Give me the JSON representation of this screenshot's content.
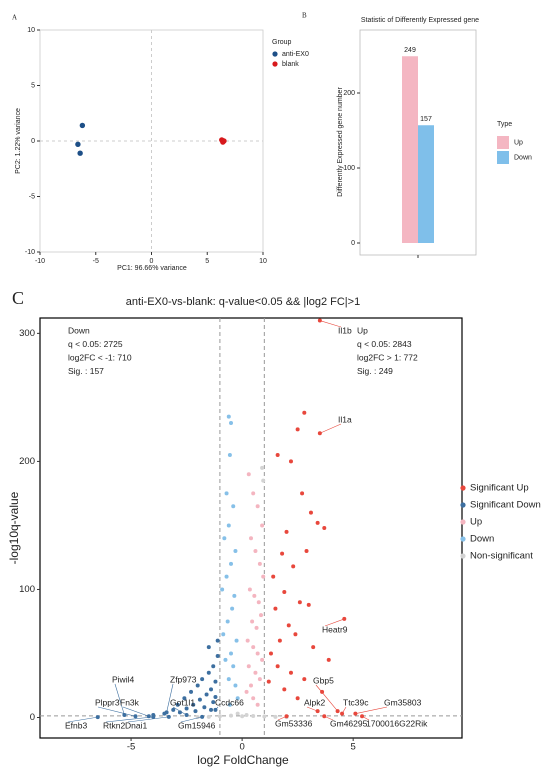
{
  "chart_data": [
    {
      "type": "scatter",
      "panel": "A",
      "x_label": "PC1: 96.66% variance",
      "y_label": "PC2: 1.22% variance",
      "xlim": [
        -10,
        10
      ],
      "xticks": [
        -10,
        -5,
        0,
        5,
        10
      ],
      "ylim": [
        -10,
        10
      ],
      "yticks": [
        -10,
        -5,
        0,
        5,
        10
      ],
      "zero_lines": true,
      "legend_title": "Group",
      "legend": "right",
      "series": [
        {
          "name": "anti-EX0",
          "color": "#1d4f87",
          "x": [
            -6.2,
            -6.6,
            -6.4
          ],
          "y": [
            1.4,
            -0.3,
            -1.1
          ]
        },
        {
          "name": "blank",
          "color": "#d7191c",
          "x": [
            6.3,
            6.4,
            6.5
          ],
          "y": [
            0.1,
            -0.1,
            0.0
          ]
        }
      ]
    },
    {
      "type": "bar",
      "panel": "B",
      "title": "Statistic of Differently Expressed gene",
      "y_label": "Differently Expressed gene number",
      "categories": [
        null
      ],
      "ylim": [
        -16,
        284
      ],
      "yticks": [
        0,
        100,
        200
      ],
      "legend_title": "Type",
      "legend": "right",
      "series": [
        {
          "name": "Up",
          "color": "#f4b6c2",
          "values": [
            249
          ]
        },
        {
          "name": "Down",
          "color": "#7fbfea",
          "values": [
            157
          ]
        }
      ]
    },
    {
      "type": "scatter",
      "panel": "C",
      "title": "anti-EX0-vs-blank: q-value<0.05 && |log2 FC|>1",
      "x_label": "log2 FoldChange",
      "y_label": "-log10q-value",
      "xlim": [
        -9.1,
        9.9
      ],
      "xticks": [
        -5,
        0,
        5
      ],
      "ylim": [
        -16,
        312
      ],
      "yticks": [
        0,
        100,
        200,
        300
      ],
      "vlines": [
        -1,
        1
      ],
      "hline": 1.3,
      "legend": "right",
      "annotations": [
        [
          "Down",
          "q < 0.05: 2725",
          "log2FC < -1: 710",
          "Sig. : 157"
        ],
        [
          "Up",
          "q < 0.05: 2843",
          "log2FC > 1: 772",
          "Sig. : 249"
        ]
      ],
      "series": [
        {
          "name": "Significant Up",
          "color": "#e8473c",
          "x": [
            2.8,
            2.5,
            2.2,
            1.6,
            2.7,
            3.1,
            3.4,
            3.7,
            2.0,
            2.9,
            1.8,
            2.3,
            1.4,
            1.9,
            2.6,
            3.0,
            1.5,
            2.1,
            2.4,
            1.7,
            3.2,
            3.9,
            1.3,
            1.6,
            2.2,
            2.8,
            1.2,
            1.9,
            3.6,
            2.5
          ],
          "y": [
            238,
            225,
            200,
            205,
            175,
            160,
            152,
            148,
            145,
            130,
            128,
            118,
            110,
            98,
            90,
            88,
            85,
            72,
            65,
            60,
            55,
            45,
            50,
            40,
            35,
            30,
            28,
            22,
            20,
            15
          ]
        },
        {
          "name": "Significant Down",
          "color": "#3d6fa0",
          "x": [
            -1.1,
            -1.3,
            -1.5,
            -1.8,
            -2.0,
            -2.3,
            -2.6,
            -2.9,
            -3.1,
            -1.2,
            -1.4,
            -1.6,
            -1.9,
            -2.2,
            -2.5,
            -1.3,
            -1.7,
            -2.1,
            -3.5,
            -4.0,
            -1.1,
            -1.5,
            -2.8,
            -1.2,
            -1.4
          ],
          "y": [
            48,
            40,
            35,
            30,
            25,
            20,
            15,
            10,
            6,
            28,
            22,
            18,
            14,
            10,
            7,
            12,
            8,
            5,
            3,
            2,
            60,
            55,
            4,
            16,
            6
          ]
        },
        {
          "name": "Up",
          "color": "#f4b5c0",
          "x": [
            0.3,
            0.5,
            0.7,
            0.9,
            0.4,
            0.6,
            0.8,
            0.95,
            0.35,
            0.55,
            0.75,
            0.85,
            0.45,
            0.65,
            0.25,
            0.5,
            0.7,
            0.9,
            0.3,
            0.6,
            0.8,
            0.4,
            0.2,
            0.5,
            0.7
          ],
          "y": [
            190,
            175,
            165,
            150,
            140,
            130,
            120,
            110,
            100,
            95,
            90,
            80,
            75,
            70,
            60,
            55,
            50,
            45,
            40,
            35,
            30,
            25,
            20,
            15,
            10
          ]
        },
        {
          "name": "Down",
          "color": "#86c0e8",
          "x": [
            -0.6,
            -0.5,
            -0.55,
            -0.7,
            -0.4,
            -0.6,
            -0.8,
            -0.3,
            -0.5,
            -0.7,
            -0.9,
            -0.35,
            -0.45,
            -0.65,
            -0.85,
            -0.25,
            -0.5,
            -0.75,
            -0.4,
            -0.6,
            -0.3,
            -0.2,
            -0.55
          ],
          "y": [
            235,
            230,
            205,
            175,
            165,
            150,
            140,
            130,
            120,
            110,
            100,
            95,
            85,
            75,
            65,
            60,
            50,
            45,
            40,
            30,
            25,
            15,
            10
          ]
        },
        {
          "name": "Non-significant",
          "color": "#d3d3d3",
          "x": [
            -1.5,
            -1,
            -0.5,
            0,
            0.5,
            1,
            1.5,
            -2,
            2,
            0.9,
            0.95,
            -0.2,
            0.2
          ],
          "y": [
            0.5,
            1,
            1.5,
            1,
            1.2,
            0.8,
            0.5,
            0.3,
            0.3,
            195,
            185,
            3,
            2
          ]
        }
      ],
      "labeled_genes": [
        {
          "name": "Il1b",
          "x": 3.5,
          "y": 310
        },
        {
          "name": "Il1a",
          "x": 3.5,
          "y": 222
        },
        {
          "name": "Heatr9",
          "x": 4.6,
          "y": 77
        },
        {
          "name": "Gbp5",
          "x": 4.3,
          "y": 5
        },
        {
          "name": "Alpk2",
          "x": 3.4,
          "y": 5
        },
        {
          "name": "Ttc39c",
          "x": 4.5,
          "y": 3
        },
        {
          "name": "Gm35803",
          "x": 5.1,
          "y": 3
        },
        {
          "name": "Gm53336",
          "x": 2.0,
          "y": 1
        },
        {
          "name": "Gm46295",
          "x": 3.7,
          "y": 1
        },
        {
          "name": "1700016G22Rik",
          "x": 5.4,
          "y": 1
        },
        {
          "name": "Piwil4",
          "x": -5.3,
          "y": 2
        },
        {
          "name": "Zfp973",
          "x": -3.4,
          "y": 4
        },
        {
          "name": "Fn3k",
          "x": -4.2,
          "y": 1
        },
        {
          "name": "Plppr3",
          "x": -4.8,
          "y": 1
        },
        {
          "name": "Got1l1",
          "x": -2.5,
          "y": 2
        },
        {
          "name": "Ccdc66",
          "x": -1.2,
          "y": 6
        },
        {
          "name": "Dnai1",
          "x": -3.3,
          "y": 0.5
        },
        {
          "name": "Efnb3",
          "x": -6.5,
          "y": 0.3
        },
        {
          "name": "Rtkn2",
          "x": -4.0,
          "y": 0.5
        },
        {
          "name": "Gm15946",
          "x": -1.8,
          "y": 0.5
        }
      ]
    }
  ]
}
